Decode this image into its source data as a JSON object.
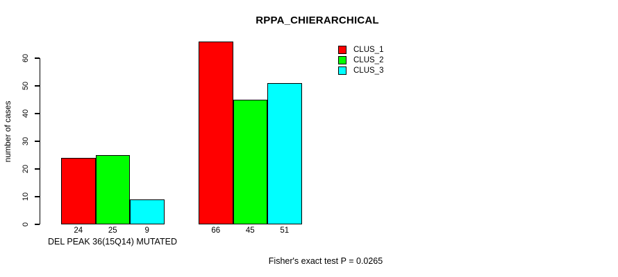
{
  "chart_data": {
    "type": "bar",
    "title": "RPPA_CHIERARCHICAL",
    "ylabel": "number of cases",
    "xlabel": "",
    "ylim": [
      0,
      66
    ],
    "yticks": [
      0,
      10,
      20,
      30,
      40,
      50,
      60
    ],
    "grid": false,
    "categories": [
      "DEL PEAK 36(15Q14) MUTATED",
      ""
    ],
    "series": [
      {
        "name": "CLUS_1",
        "color": "#ff0000",
        "values": [
          24,
          66
        ]
      },
      {
        "name": "CLUS_2",
        "color": "#00ff00",
        "values": [
          25,
          45
        ]
      },
      {
        "name": "CLUS_3",
        "color": "#00ffff",
        "values": [
          9,
          51
        ]
      }
    ],
    "bar_value_labels": [
      [
        24,
        25,
        9
      ],
      [
        66,
        45,
        51
      ]
    ],
    "legend": {
      "position": "top-right",
      "entries": [
        "CLUS_1",
        "CLUS_2",
        "CLUS_3"
      ]
    },
    "annotation": "Fisher's exact test P = 0.0265",
    "bar_border_color": "#000000",
    "background": "#ffffff"
  }
}
